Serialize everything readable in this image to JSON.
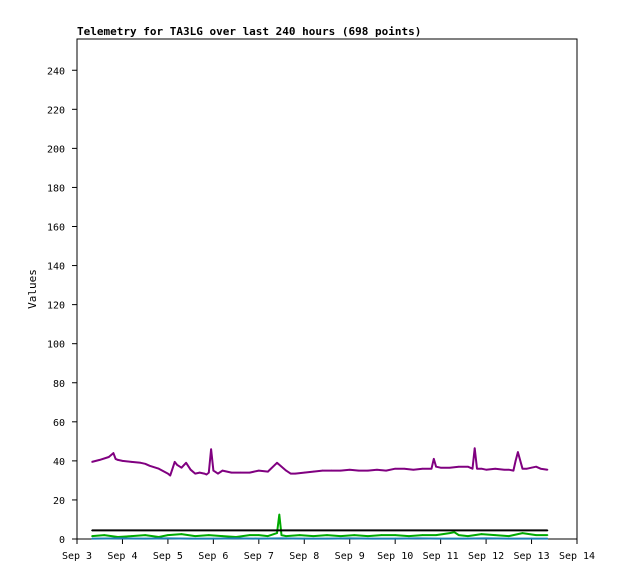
{
  "chart_data": {
    "type": "line",
    "title": "Telemetry for TA3LG over last 240 hours (698 points)",
    "xlabel": "",
    "ylabel": "Values",
    "ylim": [
      0,
      256
    ],
    "xlim": [
      3.0,
      14.0
    ],
    "yticks": [
      0,
      20,
      40,
      60,
      80,
      100,
      120,
      140,
      160,
      180,
      200,
      220,
      240
    ],
    "xticks": [
      {
        "x": 3,
        "label": "Sep 3"
      },
      {
        "x": 4,
        "label": "Sep 4"
      },
      {
        "x": 5,
        "label": "Sep 5"
      },
      {
        "x": 6,
        "label": "Sep 6"
      },
      {
        "x": 7,
        "label": "Sep 7"
      },
      {
        "x": 8,
        "label": "Sep 8"
      },
      {
        "x": 9,
        "label": "Sep 9"
      },
      {
        "x": 10,
        "label": "Sep 10"
      },
      {
        "x": 11,
        "label": "Sep 11"
      },
      {
        "x": 12,
        "label": "Sep 12"
      },
      {
        "x": 13,
        "label": "Sep 13"
      },
      {
        "x": 14,
        "label": "Sep 14"
      }
    ],
    "grid": false,
    "series": [
      {
        "color": "#800080",
        "x": [
          3.33,
          3.5,
          3.7,
          3.8,
          3.85,
          3.9,
          4.0,
          4.2,
          4.4,
          4.5,
          4.6,
          4.8,
          5.0,
          5.05,
          5.1,
          5.15,
          5.2,
          5.3,
          5.4,
          5.5,
          5.6,
          5.7,
          5.8,
          5.85,
          5.9,
          5.95,
          6.0,
          6.1,
          6.2,
          6.4,
          6.6,
          6.8,
          7.0,
          7.2,
          7.4,
          7.6,
          7.7,
          7.8,
          8.0,
          8.2,
          8.4,
          8.6,
          8.8,
          9.0,
          9.2,
          9.4,
          9.6,
          9.8,
          10.0,
          10.2,
          10.4,
          10.6,
          10.8,
          10.85,
          10.9,
          11.0,
          11.2,
          11.4,
          11.6,
          11.7,
          11.75,
          11.8,
          11.9,
          12.0,
          12.2,
          12.4,
          12.5,
          12.6,
          12.65,
          12.7,
          12.8,
          12.9,
          13.0,
          13.1,
          13.2,
          13.35
        ],
        "y": [
          39.5,
          40.5,
          42,
          44,
          41,
          40.5,
          40,
          39.5,
          39,
          38.5,
          37.5,
          36,
          33.5,
          32.5,
          36,
          39.5,
          38,
          36.5,
          39,
          35.5,
          33.5,
          34,
          33.5,
          33,
          34,
          46,
          35,
          33.5,
          35,
          34,
          34,
          34,
          35,
          34.5,
          39,
          35,
          33.5,
          33.5,
          34,
          34.5,
          35,
          35,
          35,
          35.5,
          35,
          35,
          35.5,
          35,
          36,
          36,
          35.5,
          36,
          36,
          41,
          37,
          36.5,
          36.5,
          37,
          37,
          36,
          46.5,
          36,
          36,
          35.5,
          36,
          35.5,
          35.5,
          35,
          40,
          44.5,
          36,
          36,
          36.5,
          37,
          36,
          35.5
        ]
      },
      {
        "color": "#00aa00",
        "x": [
          3.33,
          3.6,
          3.9,
          4.2,
          4.5,
          4.8,
          5.0,
          5.3,
          5.6,
          5.9,
          6.2,
          6.5,
          6.8,
          7.0,
          7.2,
          7.4,
          7.45,
          7.5,
          7.6,
          7.9,
          8.2,
          8.5,
          8.8,
          9.1,
          9.4,
          9.7,
          10.0,
          10.3,
          10.6,
          10.9,
          11.2,
          11.3,
          11.4,
          11.6,
          11.9,
          12.2,
          12.5,
          12.8,
          13.1,
          13.35
        ],
        "y": [
          1.5,
          2,
          1,
          1.5,
          2,
          1,
          2,
          2.5,
          1.5,
          2,
          1.5,
          1,
          2,
          2,
          1.5,
          3,
          12.5,
          2,
          1.5,
          2,
          1.5,
          2,
          1.5,
          2,
          1.5,
          2,
          2,
          1.5,
          2,
          2,
          3,
          3.5,
          2,
          1.5,
          2.5,
          2,
          1.5,
          3,
          2,
          2
        ]
      },
      {
        "color": "#000000",
        "x": [
          3.33,
          13.35
        ],
        "y": [
          4.4,
          4.4
        ]
      },
      {
        "color": "#1f7fb4",
        "x": [
          3.33,
          4.0,
          4.5,
          5.0,
          5.5,
          6.0,
          6.5,
          7.0,
          7.5,
          8.0,
          8.5,
          9.0,
          9.5,
          10.0,
          10.5,
          11.0,
          11.5,
          12.0,
          12.5,
          13.0,
          13.35
        ],
        "y": [
          0.2,
          0.3,
          0.2,
          0.3,
          0.2,
          0.2,
          0.3,
          0.2,
          0.3,
          0.2,
          0.2,
          0.3,
          0.2,
          0.2,
          0.3,
          0.2,
          0.2,
          0.3,
          0.2,
          0.2,
          0.2
        ]
      }
    ]
  }
}
